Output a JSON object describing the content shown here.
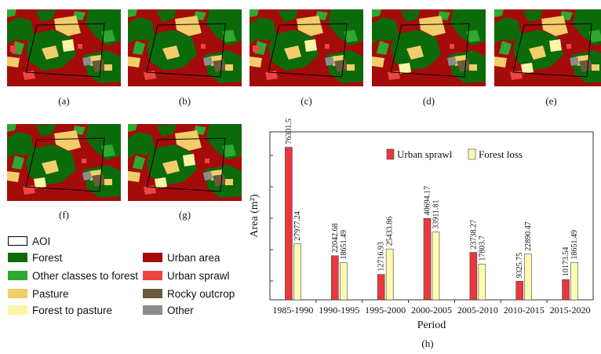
{
  "maps": [
    {
      "label": "(a)",
      "variant": 0
    },
    {
      "label": "(b)",
      "variant": 1
    },
    {
      "label": "(c)",
      "variant": 2
    },
    {
      "label": "(d)",
      "variant": 3
    },
    {
      "label": "(e)",
      "variant": 4
    },
    {
      "label": "(f)",
      "variant": 5
    },
    {
      "label": "(g)",
      "variant": 6
    }
  ],
  "legend": [
    {
      "label": "AOI",
      "color": "#ffffff",
      "outline": true
    },
    {
      "label": "Forest",
      "color": "#0b6b0b"
    },
    {
      "label": "Other classes to forest",
      "color": "#2ea82e"
    },
    {
      "label": "Pasture",
      "color": "#f3cd6a"
    },
    {
      "label": "Forest to pasture",
      "color": "#fdf5a6"
    },
    {
      "label": "Urban area",
      "color": "#a40b0b"
    },
    {
      "label": "Urban sprawl",
      "color": "#f04444"
    },
    {
      "label": "Rocky outcrop",
      "color": "#6b5b3a"
    },
    {
      "label": "Other",
      "color": "#8c8c8c"
    }
  ],
  "colors": {
    "urban": "#a40b0b",
    "forest": "#0b6b0b",
    "other_to_forest": "#2ea82e",
    "pasture": "#f3cd6a",
    "forest_to_pasture": "#fdf5a6",
    "sprawl": "#f04444",
    "rocky": "#6b5b3a",
    "other": "#8c8c8c"
  },
  "chart_data": {
    "type": "bar",
    "panel_label": "(h)",
    "title": "",
    "xlabel": "Period",
    "ylabel": "Area (m²)",
    "categories": [
      "1985-1990",
      "1990-1995",
      "1995-2000",
      "2000-2005",
      "2005-2010",
      "2010-2015",
      "2015-2020"
    ],
    "series": [
      {
        "name": "Urban sprawl",
        "color": "#e8383d",
        "values": [
          76301.57,
          22042.68,
          12716.93,
          40694.17,
          23738.27,
          9325.75,
          10173.54
        ],
        "labels": [
          "76301.57",
          "22042.68",
          "12716.93",
          "40694.17",
          "23738.27",
          "9325.75",
          "10173.54"
        ]
      },
      {
        "name": "Forest loss",
        "color": "#fdfbb0",
        "values": [
          27977.24,
          18651.49,
          25433.86,
          33911.81,
          17803.7,
          22890.47,
          18651.49
        ],
        "labels": [
          "27977.24",
          "18651.49",
          "25433.86",
          "33911.81",
          "17803.7",
          "22890.47",
          "18651.49"
        ]
      }
    ],
    "ylim": [
      0,
      84000
    ],
    "grid": false,
    "legend_position": "top-right"
  }
}
